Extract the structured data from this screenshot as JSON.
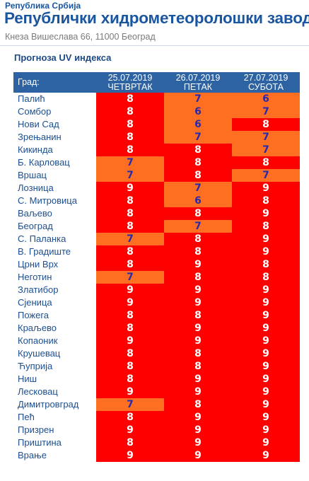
{
  "header": {
    "republic": "Република Србија",
    "institute": "Републички хидрометеоролошки завод",
    "address": "Кнеза Вишеслава 66, 11000 Београд"
  },
  "section_title": "Прогноза UV индекса",
  "table": {
    "city_header": "Град:",
    "days": [
      {
        "date": "25.07.2019",
        "weekday": "ЧЕТВРТАК"
      },
      {
        "date": "26.07.2019",
        "weekday": "ПЕТАК"
      },
      {
        "date": "27.07.2019",
        "weekday": "СУБОТА"
      }
    ],
    "rows": [
      {
        "city": "Палић",
        "values": [
          "8",
          "7",
          "6"
        ]
      },
      {
        "city": "Сомбор",
        "values": [
          "8",
          "6",
          "7"
        ]
      },
      {
        "city": "Нови Сад",
        "values": [
          "8",
          "6",
          "8"
        ]
      },
      {
        "city": "Зрењанин",
        "values": [
          "8",
          "7",
          "7"
        ]
      },
      {
        "city": "Кикинда",
        "values": [
          "8",
          "8",
          "7"
        ]
      },
      {
        "city": "Б. Карловац",
        "values": [
          "7",
          "8",
          "8"
        ]
      },
      {
        "city": "Вршац",
        "values": [
          "7",
          "8",
          "7"
        ]
      },
      {
        "city": "Лозница",
        "values": [
          "9",
          "7",
          "9"
        ]
      },
      {
        "city": "С. Митровица",
        "values": [
          "8",
          "6",
          "8"
        ]
      },
      {
        "city": "Ваљево",
        "values": [
          "8",
          "8",
          "9"
        ]
      },
      {
        "city": "Београд",
        "values": [
          "8",
          "7",
          "8"
        ]
      },
      {
        "city": "С. Паланка",
        "values": [
          "7",
          "8",
          "9"
        ]
      },
      {
        "city": "В. Градиште",
        "values": [
          "8",
          "8",
          "9"
        ]
      },
      {
        "city": "Црни Врх",
        "values": [
          "8",
          "9",
          "8"
        ]
      },
      {
        "city": "Неготин",
        "values": [
          "7",
          "8",
          "8"
        ]
      },
      {
        "city": "Златибор",
        "values": [
          "9",
          "9",
          "9"
        ]
      },
      {
        "city": "Сјеница",
        "values": [
          "9",
          "9",
          "9"
        ]
      },
      {
        "city": "Пожега",
        "values": [
          "8",
          "8",
          "9"
        ]
      },
      {
        "city": "Краљево",
        "values": [
          "8",
          "9",
          "9"
        ]
      },
      {
        "city": "Копаоник",
        "values": [
          "9",
          "9",
          "9"
        ]
      },
      {
        "city": "Крушевац",
        "values": [
          "8",
          "8",
          "9"
        ]
      },
      {
        "city": "Ћуприја",
        "values": [
          "8",
          "8",
          "9"
        ]
      },
      {
        "city": "Ниш",
        "values": [
          "8",
          "9",
          "9"
        ]
      },
      {
        "city": "Лесковац",
        "values": [
          "9",
          "9",
          "9"
        ]
      },
      {
        "city": "Димитровград",
        "values": [
          "7",
          "8",
          "9"
        ]
      },
      {
        "city": "Пећ",
        "values": [
          "8",
          "9",
          "9"
        ]
      },
      {
        "city": "Призрен",
        "values": [
          "9",
          "9",
          "9"
        ]
      },
      {
        "city": "Приштина",
        "values": [
          "8",
          "9",
          "9"
        ]
      },
      {
        "city": "Врање",
        "values": [
          "9",
          "9",
          "9"
        ]
      }
    ]
  },
  "colors": {
    "header_blue": "#2d62a3",
    "title_blue": "#1a56a0",
    "high_red": "#ff0000",
    "moderate_orange": "#ff6f21"
  }
}
